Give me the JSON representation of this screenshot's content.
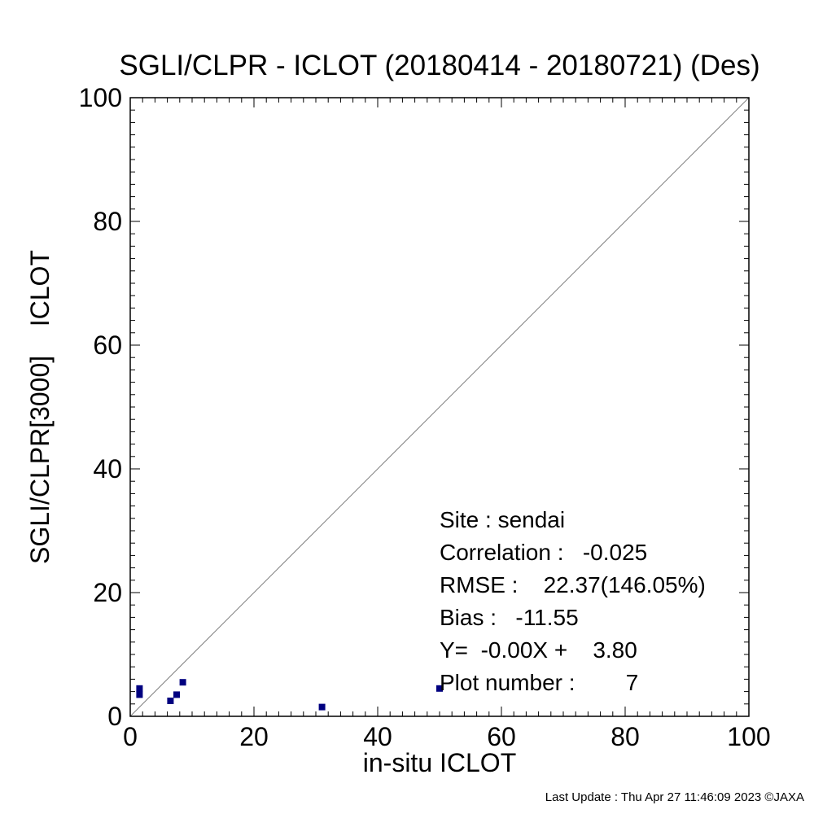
{
  "chart_data": {
    "type": "scatter",
    "title": "SGLI/CLPR - ICLOT (20180414 - 20180721) (Des)",
    "xlabel": "in-situ ICLOT",
    "ylabel": "SGLI/CLPR[3000]    ICLOT",
    "xlim": [
      0,
      100
    ],
    "ylim": [
      0,
      100
    ],
    "xticks": [
      0,
      20,
      40,
      60,
      80,
      100
    ],
    "yticks": [
      0,
      20,
      40,
      60,
      80,
      100
    ],
    "x_minor_step": 2,
    "y_minor_step": 2,
    "grid": false,
    "reference_line": {
      "type": "one-to-one",
      "from": [
        0,
        0
      ],
      "to": [
        100,
        100
      ],
      "color": "#808080"
    },
    "series": [
      {
        "marker_color": "#000080",
        "points": [
          {
            "x": 1.5,
            "y": 4.5
          },
          {
            "x": 1.5,
            "y": 3.5
          },
          {
            "x": 6.5,
            "y": 2.5
          },
          {
            "x": 7.5,
            "y": 3.5
          },
          {
            "x": 8.5,
            "y": 5.5
          },
          {
            "x": 31.0,
            "y": 1.5
          },
          {
            "x": 50.0,
            "y": 4.5
          }
        ]
      }
    ],
    "stats": {
      "site_line": "Site : sendai",
      "correlation_line": "Correlation :   -0.025",
      "rmse_line": "RMSE :    22.37(146.05%)",
      "bias_line": "Bias :   -11.55",
      "fit_line": "Y=  -0.00X +    3.80",
      "plot_number_line": "Plot number :        7"
    }
  },
  "footer": "Last Update : Thu Apr 27 11:46:09 2023  ©JAXA"
}
